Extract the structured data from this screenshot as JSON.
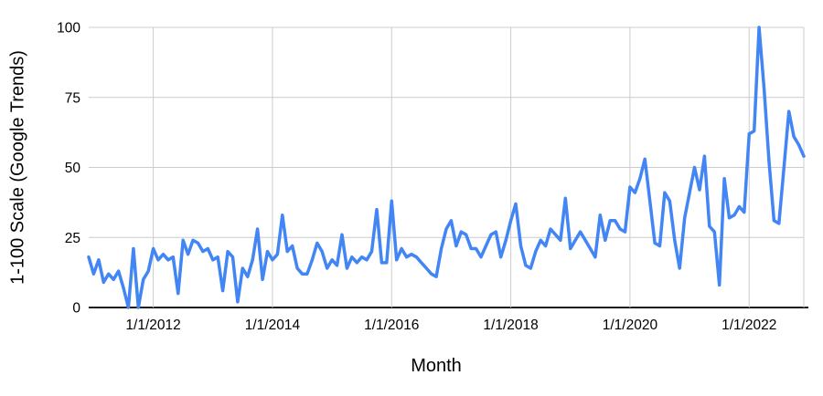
{
  "chart_data": {
    "type": "line",
    "title": "",
    "xlabel": "Month",
    "ylabel": "1-100 Scale (Google Trends)",
    "x_start_month": "2010-12",
    "x_interval": "monthly",
    "x_end_month": "2022-12",
    "x_tick_labels": [
      "1/1/2012",
      "1/1/2014",
      "1/1/2016",
      "1/1/2018",
      "1/1/2020",
      "1/1/2022"
    ],
    "x_tick_month_indices": [
      13,
      37,
      61,
      85,
      109,
      133
    ],
    "y_tick_labels": [
      "0",
      "25",
      "50",
      "75",
      "100"
    ],
    "y_ticks": [
      0,
      25,
      50,
      75,
      100
    ],
    "ylim": [
      0,
      100
    ],
    "grid": true,
    "legend_position": "none",
    "line_color": "#4285f4",
    "grid_color": "#cccccc",
    "axis_line_color": "#1a1a1a",
    "text_color": "#000000",
    "values": [
      18,
      12,
      17,
      9,
      12,
      10,
      13,
      7,
      0,
      21,
      0,
      10,
      13,
      21,
      17,
      19,
      17,
      18,
      5,
      24,
      19,
      24,
      23,
      20,
      21,
      17,
      18,
      6,
      20,
      18,
      2,
      14,
      11,
      17,
      28,
      10,
      20,
      17,
      19,
      33,
      20,
      22,
      14,
      12,
      12,
      17,
      23,
      20,
      14,
      17,
      15,
      26,
      14,
      18,
      16,
      18,
      17,
      20,
      35,
      16,
      16,
      38,
      17,
      21,
      18,
      19,
      18,
      16,
      14,
      12,
      11,
      21,
      28,
      31,
      22,
      27,
      26,
      21,
      21,
      18,
      22,
      26,
      27,
      18,
      24,
      31,
      37,
      22,
      15,
      14,
      20,
      24,
      22,
      28,
      26,
      24,
      39,
      21,
      24,
      27,
      24,
      21,
      18,
      33,
      24,
      31,
      31,
      28,
      27,
      43,
      41,
      46,
      53,
      38,
      23,
      22,
      41,
      38,
      24,
      14,
      32,
      41,
      50,
      42,
      54,
      29,
      27,
      8,
      46,
      32,
      33,
      36,
      34,
      62,
      63,
      100,
      78,
      52,
      31,
      30,
      50,
      70,
      61,
      58,
      54
    ]
  }
}
